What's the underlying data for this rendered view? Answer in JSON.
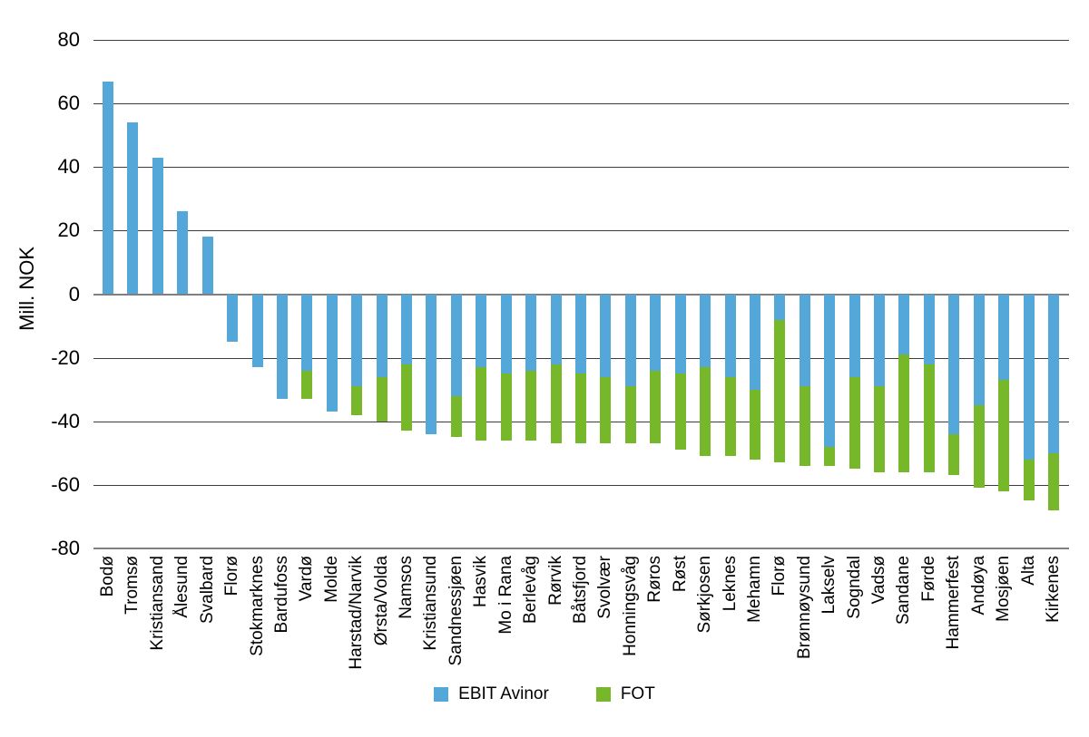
{
  "chart_data": {
    "type": "bar",
    "stacked": true,
    "title": "",
    "xlabel": "",
    "ylabel": "Mill. NOK",
    "ylim": [
      -80,
      80
    ],
    "y_ticks": [
      80,
      60,
      40,
      20,
      0,
      -20,
      -40,
      -60,
      -80
    ],
    "grid": "horizontal",
    "legend_position": "bottom",
    "categories": [
      "Bodø",
      "Tromsø",
      "Kristiansand",
      "Ålesund",
      "Svalbard",
      "Florø",
      "Stokmarknes",
      "Bardufoss",
      "Vardø",
      "Molde",
      "Harstad/Narvik",
      "Ørsta/Volda",
      "Namsos",
      "Kristiansund",
      "Sandnessjøen",
      "Hasvik",
      "Mo i Rana",
      "Berlevåg",
      "Rørvik",
      "Båtsfjord",
      "Svolvær",
      "Honningsvåg",
      "Røros",
      "Røst",
      "Sørkjosen",
      "Leknes",
      "Mehamn",
      "Florø",
      "Brønnøysund",
      "Lakselv",
      "Sogndal",
      "Vadsø",
      "Sandane",
      "Førde",
      "Hammerfest",
      "Andøya",
      "Mosjøen",
      "Alta",
      "Kirkenes"
    ],
    "series": [
      {
        "name": "EBIT Avinor",
        "color": "#53a7d9",
        "values": [
          67,
          54,
          43,
          26,
          18,
          -15,
          -23,
          -33,
          -24,
          -37,
          -29,
          -26,
          -22,
          -44,
          -32,
          -23,
          -25,
          -24,
          -22,
          -25,
          -26,
          -29,
          -24,
          -25,
          -23,
          -26,
          -30,
          -8,
          -29,
          -48,
          -26,
          -29,
          -19,
          -22,
          -44,
          -35,
          -27,
          -52,
          -50
        ]
      },
      {
        "name": "FOT",
        "color": "#77b82b",
        "values": [
          0,
          0,
          0,
          0,
          0,
          0,
          0,
          0,
          -9,
          0,
          -9,
          -14,
          -21,
          0,
          -13,
          -23,
          -21,
          -22,
          -25,
          -22,
          -21,
          -18,
          -23,
          -24,
          -28,
          -25,
          -22,
          -45,
          -25,
          -6,
          -29,
          -27,
          -37,
          -34,
          -13,
          -26,
          -35,
          -13,
          -18
        ]
      }
    ]
  },
  "colors": {
    "background": "#ffffff",
    "gridline_minor": "#3d3d3d",
    "gridline_major": "#7f7f7f",
    "text": "#000000"
  }
}
